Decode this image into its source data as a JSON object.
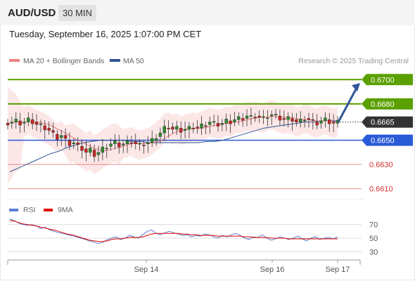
{
  "header": {
    "symbol": "AUD/USD",
    "timeframe": "30 MIN"
  },
  "subtitle": "Tuesday, September 16, 2025 1:07:00 PM CET",
  "legend": {
    "ma20": {
      "label": "MA 20 + Bollinger Bands",
      "color": "#f08080"
    },
    "ma50": {
      "label": "MA 50",
      "color": "#2f5597"
    },
    "copyright": "Research © 2025 Trading Central"
  },
  "rsi_legend": {
    "rsi": {
      "label": "RSI",
      "color": "#5b7fd4"
    },
    "ma9": {
      "label": "9MA",
      "color": "#e00000"
    }
  },
  "chart_data": [
    {
      "type": "candlestick",
      "price_range": [
        0.66,
        0.671
      ],
      "current_price": "0.6665",
      "levels": [
        {
          "label": "0.6700",
          "value": 0.67,
          "kind": "resistance",
          "color": "#5aa000"
        },
        {
          "label": "0.6680",
          "value": 0.668,
          "kind": "resistance",
          "color": "#5aa000"
        },
        {
          "label": "0.6650",
          "value": 0.665,
          "kind": "pivot",
          "color": "#2a5bd7"
        },
        {
          "label": "0.6630",
          "value": 0.663,
          "kind": "support",
          "color": "#e06060"
        },
        {
          "label": "0.6610",
          "value": 0.661,
          "kind": "support",
          "color": "#e06060"
        }
      ],
      "forecast_arrow": {
        "from": 0.6665,
        "to": 0.67,
        "color": "#2f5597"
      },
      "price_path": [
        0.6664,
        0.6665,
        0.6666,
        0.6664,
        0.6665,
        0.6667,
        0.6665,
        0.6663,
        0.6662,
        0.666,
        0.6658,
        0.6655,
        0.6652,
        0.6654,
        0.665,
        0.6647,
        0.6648,
        0.6645,
        0.6643,
        0.664,
        0.6642,
        0.6638,
        0.664,
        0.6643,
        0.6645,
        0.6647,
        0.6648,
        0.6646,
        0.6647,
        0.6648,
        0.6649,
        0.6647,
        0.6646,
        0.6647,
        0.6648,
        0.665,
        0.6653,
        0.6656,
        0.666,
        0.6661,
        0.6659,
        0.666,
        0.6658,
        0.6659,
        0.666,
        0.6661,
        0.666,
        0.6662,
        0.6663,
        0.6665,
        0.6664,
        0.6663,
        0.6664,
        0.6666,
        0.6665,
        0.6667,
        0.6668,
        0.6668,
        0.667,
        0.6669,
        0.667,
        0.6669,
        0.6668,
        0.667,
        0.6671,
        0.667,
        0.6668,
        0.6667,
        0.6668,
        0.6667,
        0.6665,
        0.6666,
        0.6668,
        0.6667,
        0.6665,
        0.6664,
        0.6666,
        0.6667,
        0.6665,
        0.6664,
        0.6665
      ],
      "ma50_path": [
        0.6624,
        0.6627,
        0.663,
        0.6633,
        0.6636,
        0.6639,
        0.6641,
        0.6644,
        0.6646,
        0.6648,
        0.6649,
        0.665,
        0.665,
        0.665,
        0.665,
        0.6649,
        0.6649,
        0.6648,
        0.6648,
        0.6648,
        0.6648,
        0.6648,
        0.6648,
        0.6648,
        0.6649,
        0.6649,
        0.665,
        0.6652,
        0.6654,
        0.6656,
        0.6658,
        0.666,
        0.6661,
        0.6662,
        0.6663,
        0.6664,
        0.6665,
        0.6665,
        0.6666,
        0.6666,
        0.6666
      ]
    },
    {
      "type": "line",
      "title": "RSI",
      "ylim": [
        20,
        80
      ],
      "y_ticks": [
        "70",
        "50",
        "30"
      ],
      "x_ticks": [
        "Sep 14",
        "Sep 16",
        "Sep 17"
      ],
      "series": [
        {
          "name": "RSI",
          "values": [
            78,
            76,
            72,
            70,
            69,
            70,
            68,
            64,
            66,
            62,
            60,
            58,
            57,
            55,
            54,
            52,
            50,
            48,
            46,
            44,
            42,
            44,
            48,
            50,
            52,
            48,
            50,
            54,
            52,
            50,
            55,
            60,
            62,
            57,
            55,
            58,
            60,
            58,
            56,
            54,
            55,
            52,
            54,
            53,
            56,
            55,
            52,
            50,
            54,
            52,
            55,
            57,
            54,
            50,
            48,
            52,
            51,
            55,
            50,
            47,
            49,
            52,
            50,
            48,
            50,
            53,
            49,
            46,
            50,
            52,
            48,
            50,
            51,
            49,
            52
          ],
          "color": "#5b7fd4"
        },
        {
          "name": "9MA",
          "values": [
            76,
            75,
            73,
            71,
            70,
            69,
            68,
            66,
            65,
            63,
            62,
            60,
            58,
            56,
            55,
            53,
            51,
            49,
            47,
            46,
            45,
            45,
            46,
            48,
            49,
            49,
            50,
            51,
            51,
            51,
            52,
            54,
            56,
            57,
            57,
            57,
            57,
            57,
            57,
            56,
            56,
            55,
            55,
            54,
            54,
            54,
            54,
            53,
            53,
            53,
            53,
            53,
            53,
            52,
            52,
            51,
            51,
            51,
            51,
            50,
            50,
            50,
            50,
            49,
            49,
            49,
            49,
            49,
            49,
            49,
            49,
            49,
            49,
            49,
            49
          ],
          "color": "#e00000"
        }
      ]
    }
  ]
}
